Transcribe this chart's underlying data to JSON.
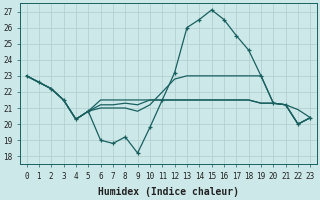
{
  "xlabel": "Humidex (Indice chaleur)",
  "bg_color": "#cce8e8",
  "line_color": "#1a6060",
  "xlim": [
    -0.5,
    23.5
  ],
  "ylim": [
    17.5,
    27.5
  ],
  "xticks": [
    0,
    1,
    2,
    3,
    4,
    5,
    6,
    7,
    8,
    9,
    10,
    11,
    12,
    13,
    14,
    15,
    16,
    17,
    18,
    19,
    20,
    21,
    22,
    23
  ],
  "yticks": [
    18,
    19,
    20,
    21,
    22,
    23,
    24,
    25,
    26,
    27
  ],
  "grid_color": "#b0cccc",
  "lines": [
    [
      23.0,
      22.6,
      22.2,
      21.5,
      20.3,
      20.8,
      19.0,
      18.8,
      19.2,
      18.2,
      19.8,
      21.5,
      23.2,
      26.0,
      26.5,
      27.1,
      26.5,
      25.5,
      24.6,
      23.0,
      21.3,
      21.2,
      20.0,
      20.4
    ],
    [
      23.0,
      22.6,
      22.2,
      21.5,
      20.3,
      20.8,
      21.0,
      21.0,
      21.0,
      20.8,
      21.2,
      22.0,
      22.8,
      23.0,
      23.0,
      23.0,
      23.0,
      23.0,
      23.0,
      23.0,
      21.3,
      21.2,
      20.9,
      20.4
    ],
    [
      23.0,
      22.6,
      22.2,
      21.5,
      20.3,
      20.8,
      21.2,
      21.2,
      21.3,
      21.2,
      21.5,
      21.5,
      21.5,
      21.5,
      21.5,
      21.5,
      21.5,
      21.5,
      21.5,
      21.3,
      21.3,
      21.2,
      20.0,
      20.4
    ],
    [
      23.0,
      22.6,
      22.2,
      21.5,
      20.3,
      20.8,
      21.5,
      21.5,
      21.5,
      21.5,
      21.5,
      21.5,
      21.5,
      21.5,
      21.5,
      21.5,
      21.5,
      21.5,
      21.5,
      21.3,
      21.3,
      21.2,
      20.0,
      20.4
    ]
  ],
  "marker_line_idx": 0,
  "figsize": [
    3.2,
    2.0
  ],
  "dpi": 100,
  "xlabel_fontsize": 7,
  "tick_fontsize": 5.5
}
